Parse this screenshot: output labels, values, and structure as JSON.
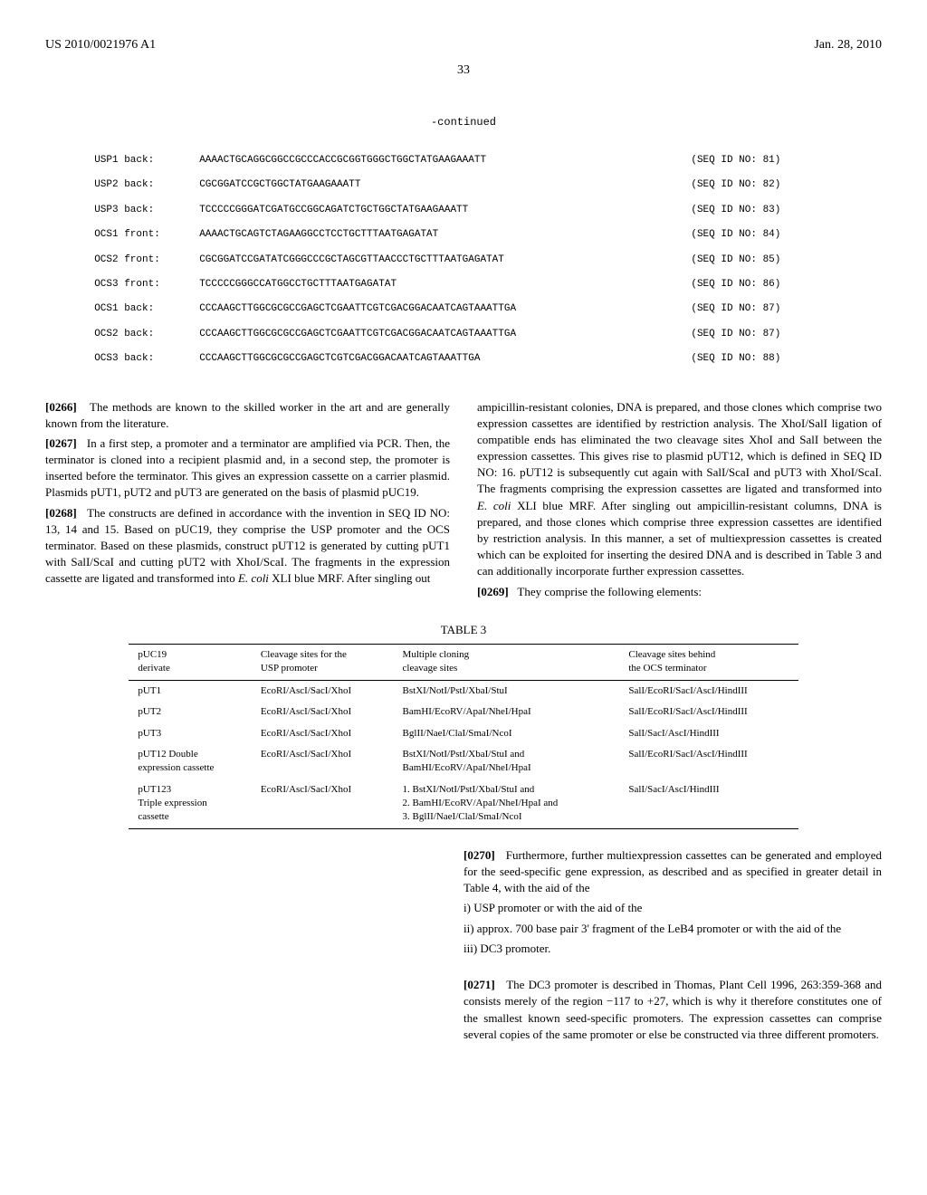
{
  "header": {
    "pub_number": "US 2010/0021976 A1",
    "pub_date": "Jan. 28, 2010",
    "page_number": "33"
  },
  "continued_label": "-continued",
  "sequences": [
    {
      "label": "USP1 back:",
      "seq": "AAAACTGCAGGCGGCCGCCCACCGCGGTGGGCTGGCTATGAAGAAATT",
      "id": "(SEQ ID NO: 81)"
    },
    {
      "label": "USP2 back:",
      "seq": "CGCGGATCCGCTGGCTATGAAGAAATT",
      "id": "(SEQ ID NO: 82)"
    },
    {
      "label": "USP3 back:",
      "seq": "TCCCCCGGGATCGATGCCGGCAGATCTGCTGGCTATGAAGAAATT",
      "id": "(SEQ ID NO: 83)"
    },
    {
      "label": "OCS1 front:",
      "seq": "AAAACTGCAGTCTAGAAGGCCTCCTGCTTTAATGAGATAT",
      "id": "(SEQ ID NO: 84)"
    },
    {
      "label": "OCS2 front:",
      "seq": "CGCGGATCCGATATCGGGCCCGCTAGCGTTAACCCTGCTTTAATGAGATAT",
      "id": "(SEQ ID NO: 85)"
    },
    {
      "label": "OCS3 front:",
      "seq": "TCCCCCGGGCCATGGCCTGCTTTAATGAGATAT",
      "id": "(SEQ ID NO: 86)"
    },
    {
      "label": "OCS1 back:",
      "seq": "CCCAAGCTTGGCGCGCCGAGCTCGAATTCGTCGACGGACAATCAGTAAATTGA",
      "id": "(SEQ ID NO: 87)"
    },
    {
      "label": "OCS2 back:",
      "seq": "CCCAAGCTTGGCGCGCCGAGCTCGAATTCGTCGACGGACAATCAGTAAATTGA",
      "id": "(SEQ ID NO: 87)"
    },
    {
      "label": "OCS3 back:",
      "seq": "CCCAAGCTTGGCGCGCCGAGCTCGTCGACGGACAATCAGTAAATTGA",
      "id": "(SEQ ID NO: 88)"
    }
  ],
  "paragraphs": {
    "p266": {
      "num": "[0266]",
      "text": "The methods are known to the skilled worker in the art and are generally known from the literature."
    },
    "p267": {
      "num": "[0267]",
      "text": "In a first step, a promoter and a terminator are amplified via PCR. Then, the terminator is cloned into a recipient plasmid and, in a second step, the promoter is inserted before the terminator. This gives an expression cassette on a carrier plasmid. Plasmids pUT1, pUT2 and pUT3 are generated on the basis of plasmid pUC19."
    },
    "p268_a": {
      "num": "[0268]",
      "text": "The constructs are defined in accordance with the invention in SEQ ID NO: 13, 14 and 15. Based on pUC19, they comprise the USP promoter and the OCS terminator. Based on these plasmids, construct pUT12 is generated by cutting pUT1 with SalI/ScaI and cutting pUT2 with XhoI/ScaI. The fragments in the expression cassette are ligated and transformed into "
    },
    "p268_b": {
      "italic": "E. coli",
      "text": " XLI blue MRF. After singling out "
    },
    "right_col_a": {
      "text": "ampicillin-resistant colonies, DNA is prepared, and those clones which comprise two expression cassettes are identified by restriction analysis. The XhoI/SalI ligation of compatible ends has eliminated the two cleavage sites XhoI and SalI between the expression cassettes. This gives rise to plasmid pUT12, which is defined in SEQ ID NO: 16. pUT12 is subsequently cut again with SalI/ScaI and pUT3 with XhoI/ScaI. The fragments comprising the expression cassettes are ligated and transformed into "
    },
    "right_col_b": {
      "italic": "E. coli",
      "text": " XLI blue MRF. After singling out ampicillin-resistant columns, DNA is prepared, and those clones which comprise three expression cassettes are identified by restriction analysis. In this manner, a set of multiexpression cassettes is created which can be exploited for inserting the desired DNA and is described in Table 3 and can additionally incorporate further expression cassettes."
    },
    "p269": {
      "num": "[0269]",
      "text": "They comprise the following elements:"
    },
    "p270": {
      "num": "[0270]",
      "text": "Furthermore, further multiexpression cassettes can be generated and employed for the seed-specific gene expression, as described and as specified in greater detail in Table 4, with the aid of the"
    },
    "p270_i": "i) USP promoter or with the aid of the",
    "p270_ii": "ii) approx. 700 base pair 3' fragment of the LeB4 promoter or with the aid of the",
    "p270_iii": "iii) DC3 promoter.",
    "p271": {
      "num": "[0271]",
      "text": "The DC3 promoter is described in Thomas, Plant Cell 1996, 263:359-368 and consists merely of the region −117 to +27, which is why it therefore constitutes one of the smallest known seed-specific promoters. The expression cassettes can comprise several copies of the same promoter or else be constructed via three different promoters."
    }
  },
  "table3": {
    "label": "TABLE 3",
    "headers": [
      "pUC19\nderivate",
      "Cleavage sites for the\nUSP promoter",
      "Multiple cloning\ncleavage sites",
      "Cleavage sites behind\nthe OCS terminator"
    ],
    "rows": [
      [
        "pUT1",
        "EcoRI/AscI/SacI/XhoI",
        "BstXI/NotI/PstI/XbaI/StuI",
        "SalI/EcoRI/SacI/AscI/HindIII"
      ],
      [
        "pUT2",
        "EcoRI/AscI/SacI/XhoI",
        "BamHI/EcoRV/ApaI/NheI/HpaI",
        "SalI/EcoRI/SacI/AscI/HindIII"
      ],
      [
        "pUT3",
        "EcoRI/AscI/SacI/XhoI",
        "BglII/NaeI/ClaI/SmaI/NcoI",
        "SalI/SacI/AscI/HindIII"
      ],
      [
        "pUT12 Double\nexpression cassette",
        "EcoRI/AscI/SacI/XhoI",
        "BstXI/NotI/PstI/XbaI/StuI and\nBamHI/EcoRV/ApaI/NheI/HpaI",
        "SalI/EcoRI/SacI/AscI/HindIII"
      ],
      [
        "pUT123\nTriple expression\ncassette",
        "EcoRI/AscI/SacI/XhoI",
        "1. BstXI/NotI/PstI/XbaI/StuI and\n2. BamHI/EcoRV/ApaI/NheI/HpaI and\n3. BglII/NaeI/ClaI/SmaI/NcoI",
        "SalI/SacI/AscI/HindIII"
      ]
    ]
  }
}
